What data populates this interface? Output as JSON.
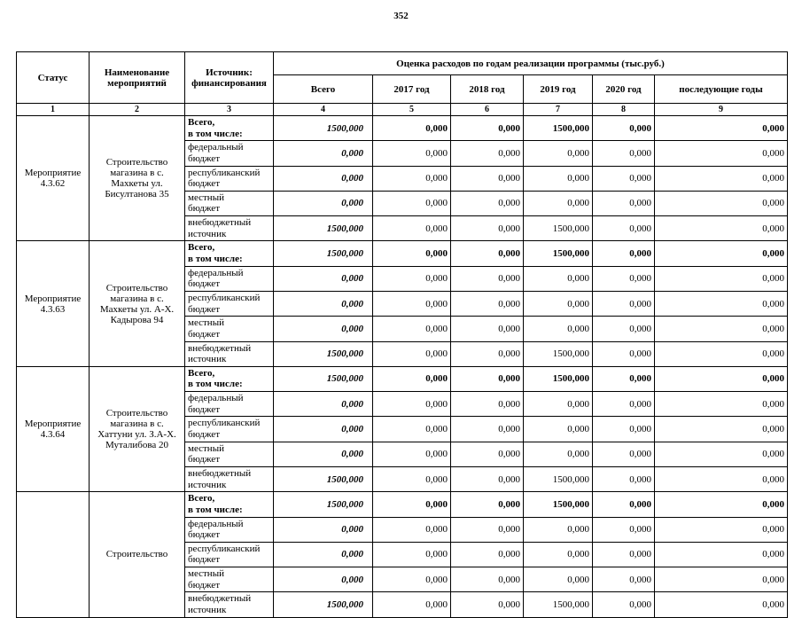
{
  "page": {
    "number": "352"
  },
  "table": {
    "header": {
      "status": "Статус",
      "name": "Наименование мероприятий",
      "source": "Источник:\nфинансирования",
      "group": "Оценка расходов по годам реализации  программы (тыс.руб.)",
      "cols": [
        "Всего",
        "2017 год",
        "2018 год",
        "2019 год",
        "2020 год",
        "последующие годы"
      ],
      "numbers": [
        "1",
        "2",
        "3",
        "4",
        "5",
        "6",
        "7",
        "8",
        "9"
      ]
    },
    "blocks": [
      {
        "status": "Мероприятие 4.3.62",
        "name": "Строительство магазина в с. Махкеты ул. Бисултанова 35",
        "rows": [
          {
            "source": "Всего,\nв том числе:",
            "source_bold": true,
            "values_bold": true,
            "values": [
              "1500,000",
              "0,000",
              "0,000",
              "1500,000",
              "0,000",
              "0,000"
            ]
          },
          {
            "source": "федеральный\nбюджет",
            "values": [
              "0,000",
              "0,000",
              "0,000",
              "0,000",
              "0,000",
              "0,000"
            ]
          },
          {
            "source": "республиканский\nбюджет",
            "values": [
              "0,000",
              "0,000",
              "0,000",
              "0,000",
              "0,000",
              "0,000"
            ]
          },
          {
            "source": "местный\nбюджет",
            "values": [
              "0,000",
              "0,000",
              "0,000",
              "0,000",
              "0,000",
              "0,000"
            ]
          },
          {
            "source": "внебюджетный\nисточник",
            "values": [
              "1500,000",
              "0,000",
              "0,000",
              "1500,000",
              "0,000",
              "0,000"
            ]
          }
        ]
      },
      {
        "status": "Мероприятие 4.3.63",
        "name": "Строительство магазина в с. Махкеты ул. А-Х. Кадырова 94",
        "rows": [
          {
            "source": "Всего,\nв том числе:",
            "source_bold": true,
            "values_bold": true,
            "values": [
              "1500,000",
              "0,000",
              "0,000",
              "1500,000",
              "0,000",
              "0,000"
            ]
          },
          {
            "source": "федеральный\nбюджет",
            "values": [
              "0,000",
              "0,000",
              "0,000",
              "0,000",
              "0,000",
              "0,000"
            ]
          },
          {
            "source": "республиканский\nбюджет",
            "values": [
              "0,000",
              "0,000",
              "0,000",
              "0,000",
              "0,000",
              "0,000"
            ]
          },
          {
            "source": "местный\nбюджет",
            "values": [
              "0,000",
              "0,000",
              "0,000",
              "0,000",
              "0,000",
              "0,000"
            ]
          },
          {
            "source": "внебюджетный\nисточник",
            "values": [
              "1500,000",
              "0,000",
              "0,000",
              "1500,000",
              "0,000",
              "0,000"
            ]
          }
        ]
      },
      {
        "status": "Мероприятие 4.3.64",
        "name": "Строительство магазина в с. Хаттуни ул. З.А-Х. Муталибова 20",
        "rows": [
          {
            "source": "Всего,\nв том числе:",
            "source_bold": true,
            "values_bold": true,
            "values": [
              "1500,000",
              "0,000",
              "0,000",
              "1500,000",
              "0,000",
              "0,000"
            ]
          },
          {
            "source": "федеральный\nбюджет",
            "values": [
              "0,000",
              "0,000",
              "0,000",
              "0,000",
              "0,000",
              "0,000"
            ]
          },
          {
            "source": "республиканский\nбюджет",
            "values": [
              "0,000",
              "0,000",
              "0,000",
              "0,000",
              "0,000",
              "0,000"
            ]
          },
          {
            "source": "местный\nбюджет",
            "values": [
              "0,000",
              "0,000",
              "0,000",
              "0,000",
              "0,000",
              "0,000"
            ]
          },
          {
            "source": "внебюджетный\nисточник",
            "values": [
              "1500,000",
              "0,000",
              "0,000",
              "1500,000",
              "0,000",
              "0,000"
            ]
          }
        ]
      },
      {
        "status": "",
        "name": "Строительство",
        "rows": [
          {
            "source": "Всего,\nв том числе:",
            "source_bold": true,
            "values_bold": true,
            "values": [
              "1500,000",
              "0,000",
              "0,000",
              "1500,000",
              "0,000",
              "0,000"
            ]
          },
          {
            "source": "федеральный\nбюджет",
            "values": [
              "0,000",
              "0,000",
              "0,000",
              "0,000",
              "0,000",
              "0,000"
            ]
          },
          {
            "source": "республиканский\nбюджет",
            "values": [
              "0,000",
              "0,000",
              "0,000",
              "0,000",
              "0,000",
              "0,000"
            ]
          },
          {
            "source": "местный\nбюджет",
            "values": [
              "0,000",
              "0,000",
              "0,000",
              "0,000",
              "0,000",
              "0,000"
            ]
          },
          {
            "source": "внебюджетный\nисточник",
            "values": [
              "1500,000",
              "0,000",
              "0,000",
              "1500,000",
              "0,000",
              "0,000"
            ]
          }
        ]
      }
    ]
  }
}
